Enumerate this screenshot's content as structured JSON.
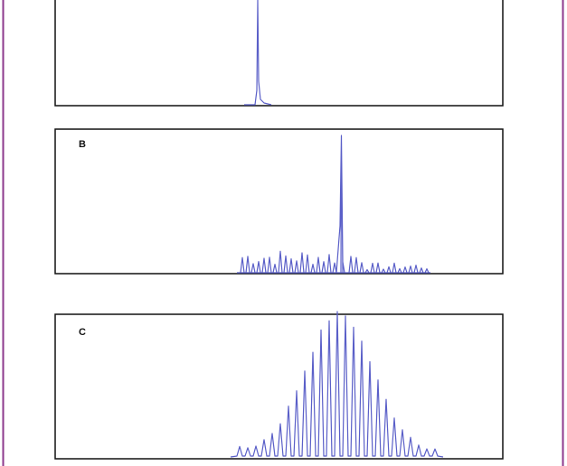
{
  "panels": [
    {
      "label": "B"
    },
    {
      "label": "C"
    }
  ]
}
